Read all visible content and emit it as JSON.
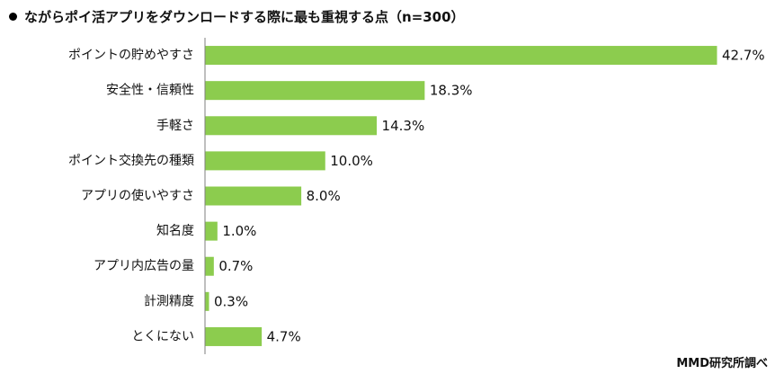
{
  "chart_data": {
    "type": "bar",
    "orientation": "horizontal",
    "title": "ながらポイ活アプリをダウンロードする際に最も重視する点（n=300）",
    "categories": [
      "ポイントの貯めやすさ",
      "安全性・信頼性",
      "手軽さ",
      "ポイント交換先の種類",
      "アプリの使いやすさ",
      "知名度",
      "アプリ内広告の量",
      "計測精度",
      "とくにない"
    ],
    "values": [
      42.7,
      18.3,
      14.3,
      10.0,
      8.0,
      1.0,
      0.7,
      0.3,
      4.7
    ],
    "value_labels": [
      "42.7%",
      "18.3%",
      "14.3%",
      "10.0%",
      "8.0%",
      "1.0%",
      "0.7%",
      "0.3%",
      "4.7%"
    ],
    "unit": "%",
    "xlim": [
      0,
      45
    ],
    "grid": false,
    "legend": "none",
    "bar_color": "#8ccc4e",
    "axis_color": "#7f7f7f"
  },
  "source": "MMD研究所調べ"
}
